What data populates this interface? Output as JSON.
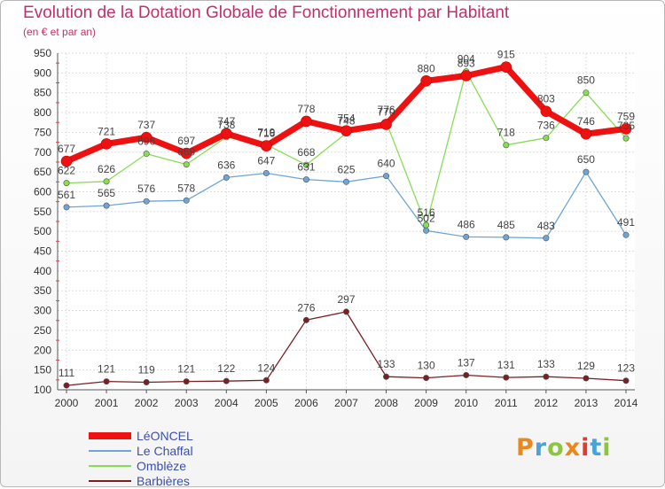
{
  "header": {
    "title": "Evolution de la Dotation Globale de Fonctionnement par Habitant",
    "subtitle": "(en € et par an)"
  },
  "logo": {
    "text": "Proxiti",
    "colors": [
      "#e8891e",
      "#4aa3d8",
      "#8cc63f",
      "#e8891e",
      "#e23b2f",
      "#4aa3d8",
      "#8cc63f"
    ]
  },
  "chart_data": {
    "type": "line",
    "title": "Evolution de la Dotation Globale de Fonctionnement par Habitant",
    "subtitle": "(en € et par an)",
    "x": [
      "2000",
      "2001",
      "2002",
      "2003",
      "2004",
      "2005",
      "2006",
      "2007",
      "2008",
      "2009",
      "2010",
      "2011",
      "2012",
      "2013",
      "2014"
    ],
    "ylim": [
      100,
      950
    ],
    "yticks": [
      100,
      150,
      200,
      250,
      300,
      350,
      400,
      450,
      500,
      550,
      600,
      650,
      700,
      750,
      800,
      850,
      900,
      950
    ],
    "grid": true,
    "legend": "bottom-left",
    "series": [
      {
        "name": "LéONCEL",
        "color": "#ee1111",
        "values": [
          677,
          721,
          737,
          697,
          747,
          716,
          778,
          754,
          770,
          880,
          893,
          915,
          803,
          746,
          759
        ]
      },
      {
        "name": "Le Chaffal",
        "color": "#6fa5d6",
        "values": [
          561,
          565,
          576,
          578,
          636,
          647,
          631,
          625,
          640,
          502,
          486,
          485,
          483,
          650,
          491
        ]
      },
      {
        "name": "Omblèze",
        "color": "#88dd55",
        "values": [
          622,
          626,
          696,
          669,
          738,
          719,
          668,
          748,
          776,
          516,
          904,
          718,
          736,
          850,
          735
        ]
      },
      {
        "name": "Barbières",
        "color": "#7a1f22",
        "values": [
          111,
          121,
          119,
          121,
          122,
          124,
          276,
          297,
          133,
          130,
          137,
          131,
          133,
          129,
          123
        ]
      }
    ]
  }
}
